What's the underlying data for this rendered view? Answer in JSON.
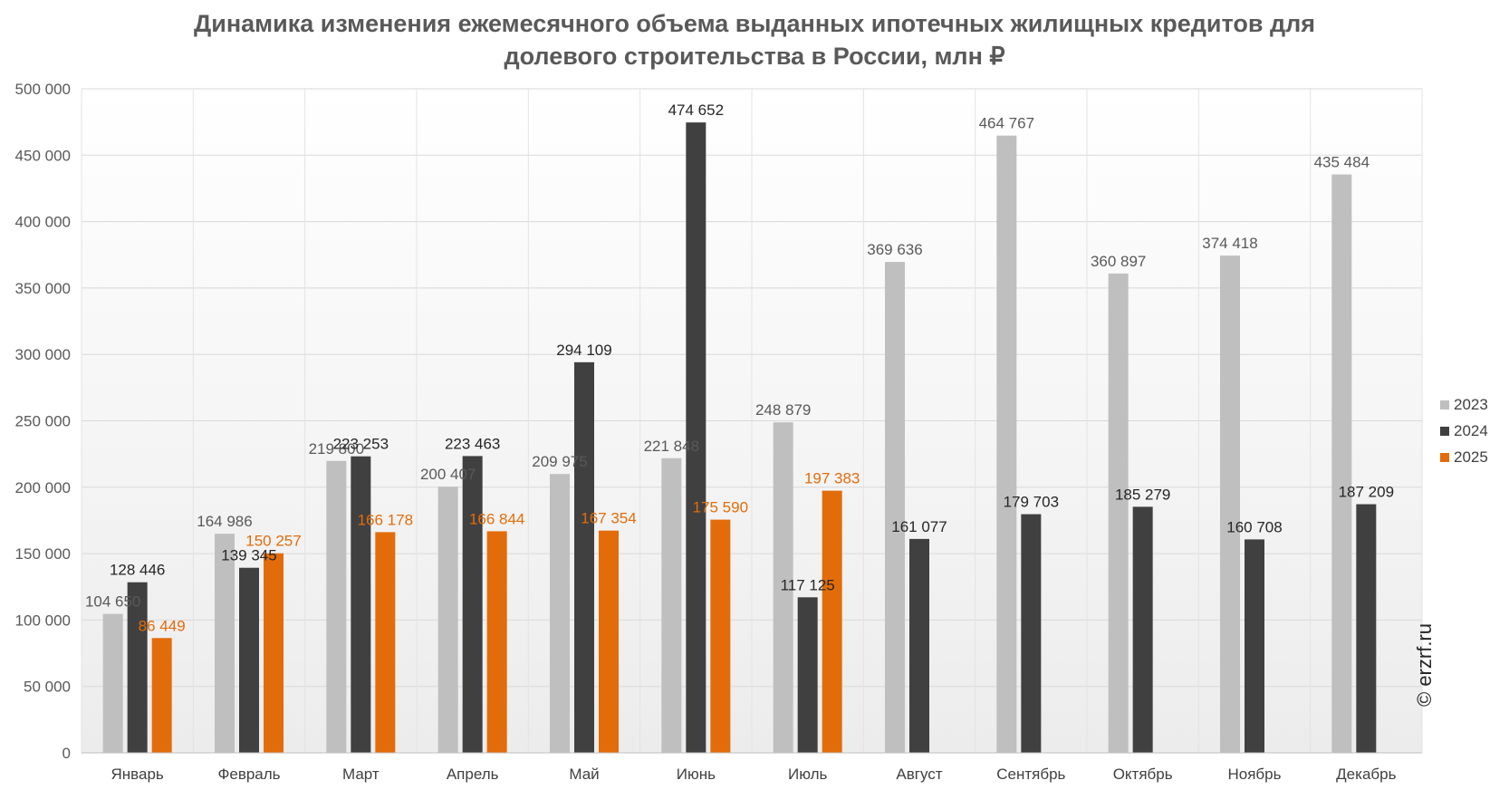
{
  "chart_data": {
    "type": "bar",
    "title_lines": [
      "Динамика изменения ежемесячного объема выданных ипотечных жилищных кредитов для",
      "долевого строительства в России, млн ₽"
    ],
    "categories": [
      "Январь",
      "Февраль",
      "Март",
      "Апрель",
      "Май",
      "Июнь",
      "Июль",
      "Август",
      "Сентябрь",
      "Октябрь",
      "Ноябрь",
      "Декабрь"
    ],
    "series": [
      {
        "name": "2023",
        "color": "#bfbfbf",
        "label_color": "#595959",
        "values": [
          104650,
          164986,
          219800,
          200407,
          209975,
          221848,
          248879,
          369636,
          464767,
          360897,
          374418,
          435484
        ],
        "labels": [
          "104 650",
          "164 986",
          "219 800",
          "200 407",
          "209 975",
          "221 848",
          "248 879",
          "369 636",
          "464 767",
          "360 897",
          "374 418",
          "435 484"
        ]
      },
      {
        "name": "2024",
        "color": "#404040",
        "label_color": "#262626",
        "values": [
          128446,
          139345,
          223253,
          223463,
          294109,
          474652,
          117125,
          161077,
          179703,
          185279,
          160708,
          187209
        ],
        "labels": [
          "128 446",
          "139 345",
          "223 253",
          "223 463",
          "294 109",
          "474 652",
          "117 125",
          "161 077",
          "179 703",
          "185 279",
          "160 708",
          "187 209"
        ]
      },
      {
        "name": "2025",
        "color": "#e36c0a",
        "label_color": "#e36c0a",
        "values": [
          86449,
          150257,
          166178,
          166844,
          167354,
          175590,
          197383,
          null,
          null,
          null,
          null,
          null
        ],
        "labels": [
          "86 449",
          "150 257",
          "166 178",
          "166 844",
          "167 354",
          "175 590",
          "197 383",
          "",
          "",
          "",
          "",
          ""
        ]
      }
    ],
    "ylim": [
      0,
      500000
    ],
    "yticks": [
      0,
      50000,
      100000,
      150000,
      200000,
      250000,
      300000,
      350000,
      400000,
      450000,
      500000
    ],
    "ytick_labels": [
      "0",
      "50 000",
      "100 000",
      "150 000",
      "200 000",
      "250 000",
      "300 000",
      "350 000",
      "400 000",
      "450 000",
      "500 000"
    ],
    "grid": true,
    "legend_position": "right"
  },
  "watermark": "© erzrf.ru"
}
